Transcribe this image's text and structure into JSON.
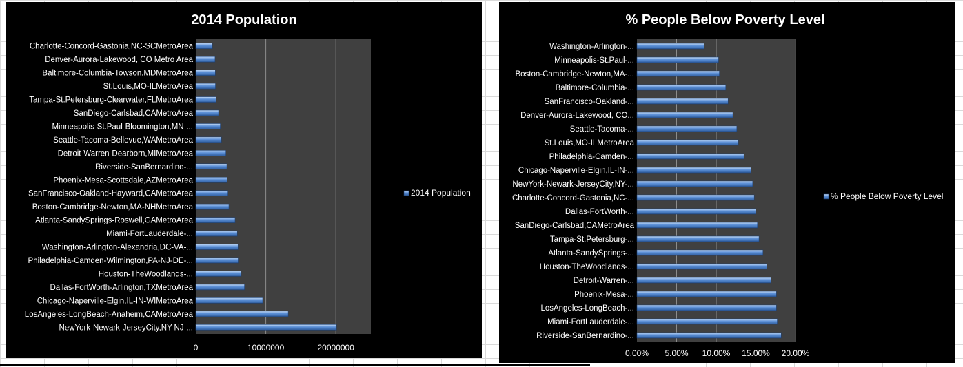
{
  "chart_data": [
    {
      "type": "bar",
      "orientation": "horizontal",
      "title": "2014 Population",
      "xlabel": "",
      "ylabel": "",
      "xlim": [
        0,
        25000000
      ],
      "ticks": [
        "0",
        "10000000",
        "20000000"
      ],
      "tick_values": [
        0,
        10000000,
        20000000
      ],
      "grid": true,
      "legend_position": "right",
      "bar_color": "#4f81bd",
      "series": [
        {
          "name": "2014 Population"
        }
      ],
      "categories": [
        "NewYork-Newark-JerseyCity,NY-NJ-...",
        "LosAngeles-LongBeach-Anaheim,CAMetroArea",
        "Chicago-Naperville-Elgin,IL-IN-WIMetroArea",
        "Dallas-FortWorth-Arlington,TXMetroArea",
        "Houston-TheWoodlands-...",
        "Philadelphia-Camden-Wilmington,PA-NJ-DE-...",
        "Washington-Arlington-Alexandria,DC-VA-...",
        "Miami-FortLauderdale-...",
        "Atlanta-SandySprings-Roswell,GAMetroArea",
        "Boston-Cambridge-Newton,MA-NHMetroArea",
        "SanFrancisco-Oakland-Hayward,CAMetroArea",
        "Phoenix-Mesa-Scottsdale,AZMetroArea",
        "Riverside-SanBernardino-...",
        "Detroit-Warren-Dearborn,MIMetroArea",
        "Seattle-Tacoma-Bellevue,WAMetroArea",
        "Minneapolis-St.Paul-Bloomington,MN-...",
        "SanDiego-Carlsbad,CAMetroArea",
        "Tampa-St.Petersburg-Clearwater,FLMetroArea",
        "St.Louis,MO-ILMetroArea",
        "Baltimore-Columbia-Towson,MDMetroArea",
        "Denver-Aurora-Lakewood, CO Metro Area",
        "Charlotte-Concord-Gastonia,NC-SCMetroArea"
      ],
      "values": [
        20100000,
        13200000,
        9550000,
        6950000,
        6490000,
        6050000,
        6030000,
        5930000,
        5610000,
        4730000,
        4590000,
        4490000,
        4440000,
        4300000,
        3670000,
        3500000,
        3260000,
        2920000,
        2810000,
        2790000,
        2750000,
        2380000
      ]
    },
    {
      "type": "bar",
      "orientation": "horizontal",
      "title": "% People Below Poverty Level",
      "xlabel": "",
      "ylabel": "",
      "xlim": [
        0,
        0.2
      ],
      "ticks": [
        "0.00%",
        "5.00%",
        "10.00%",
        "15.00%",
        "20.00%"
      ],
      "tick_values": [
        0,
        0.05,
        0.1,
        0.15,
        0.2
      ],
      "grid": true,
      "legend_position": "right",
      "bar_color": "#4f81bd",
      "series": [
        {
          "name": "% People Below Poverty Level"
        }
      ],
      "categories": [
        "Riverside-SanBernardino-...",
        "Miami-FortLauderdale-...",
        "LosAngeles-LongBeach-...",
        "Phoenix-Mesa-...",
        "Detroit-Warren-...",
        "Houston-TheWoodlands-...",
        "Atlanta-SandySprings-...",
        "Tampa-St.Petersburg-...",
        "SanDiego-Carlsbad,CAMetroArea",
        "Dallas-FortWorth-...",
        "Charlotte-Concord-Gastonia,NC-...",
        "NewYork-Newark-JerseyCity,NY-...",
        "Chicago-Naperville-Elgin,IL-IN-...",
        "Philadelphia-Camden-...",
        "St.Louis,MO-ILMetroArea",
        "Seattle-Tacoma-...",
        "Denver-Aurora-Lakewood, CO...",
        "SanFrancisco-Oakland-...",
        "Baltimore-Columbia-...",
        "Boston-Cambridge-Newton,MA-...",
        "Minneapolis-St.Paul-...",
        "Washington-Arlington-..."
      ],
      "values": [
        0.182,
        0.177,
        0.176,
        0.176,
        0.169,
        0.164,
        0.159,
        0.154,
        0.152,
        0.15,
        0.148,
        0.146,
        0.144,
        0.135,
        0.128,
        0.126,
        0.121,
        0.115,
        0.112,
        0.104,
        0.103,
        0.085
      ]
    }
  ]
}
